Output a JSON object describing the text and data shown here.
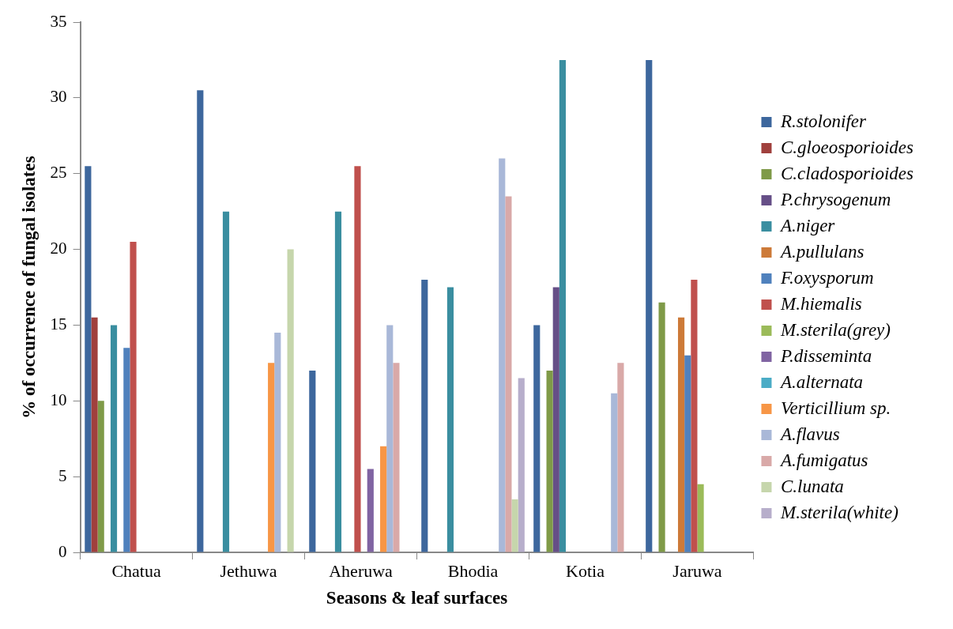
{
  "chart_data": {
    "type": "bar",
    "xlabel": "Seasons & leaf surfaces",
    "ylabel": "% of occurrence of fungal isolates",
    "categories": [
      "Chatua",
      "Jethuwa",
      "Aheruwa",
      "Bhodia",
      "Kotia",
      "Jaruwa"
    ],
    "ylim": [
      0,
      35
    ],
    "yticks": [
      0,
      5,
      10,
      15,
      20,
      25,
      30,
      35
    ],
    "grid": false,
    "legend": "right",
    "series": [
      {
        "name": "R.stolonifer",
        "color": "#3d679d",
        "values": [
          25.5,
          30.5,
          12,
          18,
          15,
          32.5
        ]
      },
      {
        "name": "C.gloeosporioides",
        "color": "#a0403d",
        "values": [
          15.5,
          null,
          null,
          null,
          null,
          null
        ]
      },
      {
        "name": "C.cladosporioides",
        "color": "#7f9a48",
        "values": [
          10,
          null,
          null,
          null,
          12,
          16.5
        ]
      },
      {
        "name": "P.chrysogenum",
        "color": "#664f87",
        "values": [
          null,
          null,
          null,
          null,
          17.5,
          null
        ]
      },
      {
        "name": "A.niger",
        "color": "#3a8ea0",
        "values": [
          15,
          22.5,
          22.5,
          17.5,
          32.5,
          null
        ]
      },
      {
        "name": "A.pullulans",
        "color": "#cd7a38",
        "values": [
          null,
          null,
          null,
          null,
          null,
          15.5
        ]
      },
      {
        "name": "F.oxysporum",
        "color": "#4f81bd",
        "values": [
          13.5,
          null,
          null,
          null,
          null,
          13
        ]
      },
      {
        "name": "M.hiemalis",
        "color": "#c0504d",
        "values": [
          20.5,
          null,
          25.5,
          null,
          null,
          18
        ]
      },
      {
        "name": "M.sterila(grey)",
        "color": "#9bbb59",
        "values": [
          null,
          null,
          null,
          null,
          null,
          4.5
        ]
      },
      {
        "name": "P.disseminta",
        "color": "#8064a2",
        "values": [
          null,
          null,
          5.5,
          null,
          null,
          null
        ]
      },
      {
        "name": "A.alternata",
        "color": "#4bacc6",
        "values": [
          null,
          null,
          null,
          null,
          null,
          null
        ]
      },
      {
        "name": "Verticillium sp.",
        "color": "#f79646",
        "values": [
          null,
          12.5,
          7,
          null,
          null,
          null
        ]
      },
      {
        "name": "A.flavus",
        "color": "#a9b8d8",
        "values": [
          null,
          14.5,
          15,
          26,
          10.5,
          null
        ]
      },
      {
        "name": "A.fumigatus",
        "color": "#d9a9a8",
        "values": [
          null,
          null,
          12.5,
          23.5,
          12.5,
          null
        ]
      },
      {
        "name": "C.lunata",
        "color": "#c6d6ac",
        "values": [
          null,
          20,
          null,
          3.5,
          null,
          null
        ]
      },
      {
        "name": "M.sterila(white)",
        "color": "#b7aecb",
        "values": [
          null,
          null,
          null,
          11.5,
          null,
          null
        ]
      }
    ]
  }
}
